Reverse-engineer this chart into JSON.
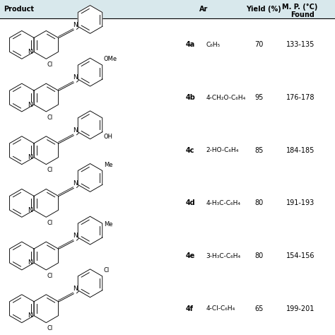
{
  "background_color": "#d8e8ec",
  "header_bg": "#d8e8ec",
  "table_bg": "#ffffff",
  "rows": [
    {
      "id": "4a",
      "ar": "C₆H₅",
      "yield": "70",
      "mp": "133-135",
      "sub": "",
      "sub_pos": "top-right"
    },
    {
      "id": "4b",
      "ar": "4-CH₂O-C₆H₄",
      "yield": "95",
      "mp": "176-178",
      "sub": "OMe",
      "sub_pos": "top-right"
    },
    {
      "id": "4c",
      "ar": "2-HO-C₆H₄",
      "yield": "85",
      "mp": "184-185",
      "sub": "OH",
      "sub_pos": "bottom-right"
    },
    {
      "id": "4d",
      "ar": "4-H₃C-C₆H₄",
      "yield": "80",
      "mp": "191-193",
      "sub": "Me",
      "sub_pos": "top-right"
    },
    {
      "id": "4e",
      "ar": "3-H₃C-C₆H₄",
      "yield": "80",
      "mp": "154-156",
      "sub": "Me",
      "sub_pos": "right"
    },
    {
      "id": "4f",
      "ar": "4-Cl-C₆H₄",
      "yield": "65",
      "mp": "199-201",
      "sub": "Cl",
      "sub_pos": "top-right"
    }
  ],
  "font_size": 7.0,
  "figsize": [
    4.74,
    4.74
  ],
  "dpi": 100
}
